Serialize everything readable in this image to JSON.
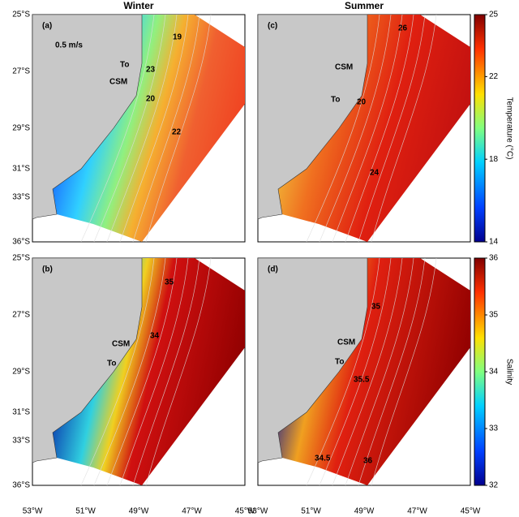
{
  "column_titles": [
    "Winter",
    "Summer"
  ],
  "panels": [
    {
      "label": "(a)",
      "annotations": [
        "0.5 m/s",
        "CSM",
        "To",
        "20",
        "19",
        "23",
        "22"
      ]
    },
    {
      "label": "(c)",
      "annotations": [
        "CSM",
        "To",
        "20",
        "26",
        "24"
      ]
    },
    {
      "label": "(b)",
      "annotations": [
        "CSM",
        "To",
        "35",
        "34"
      ]
    },
    {
      "label": "(d)",
      "annotations": [
        "CSM",
        "To",
        "35",
        "35.5",
        "34.5",
        "36"
      ]
    }
  ],
  "lat_labels": [
    "25°S",
    "27°S",
    "29°S",
    "31°S",
    "33°S",
    "36°S"
  ],
  "lon_labels": [
    "53°W",
    "51°W",
    "49°W",
    "47°W",
    "45°W"
  ],
  "colorbars": [
    {
      "label": "Temperature (°C)",
      "lim": [
        14,
        25
      ],
      "ticks": [
        14,
        18,
        22,
        25
      ]
    },
    {
      "label": "Salinity",
      "lim": [
        32,
        36
      ],
      "ticks": [
        32,
        33,
        34,
        35,
        36
      ]
    }
  ]
}
